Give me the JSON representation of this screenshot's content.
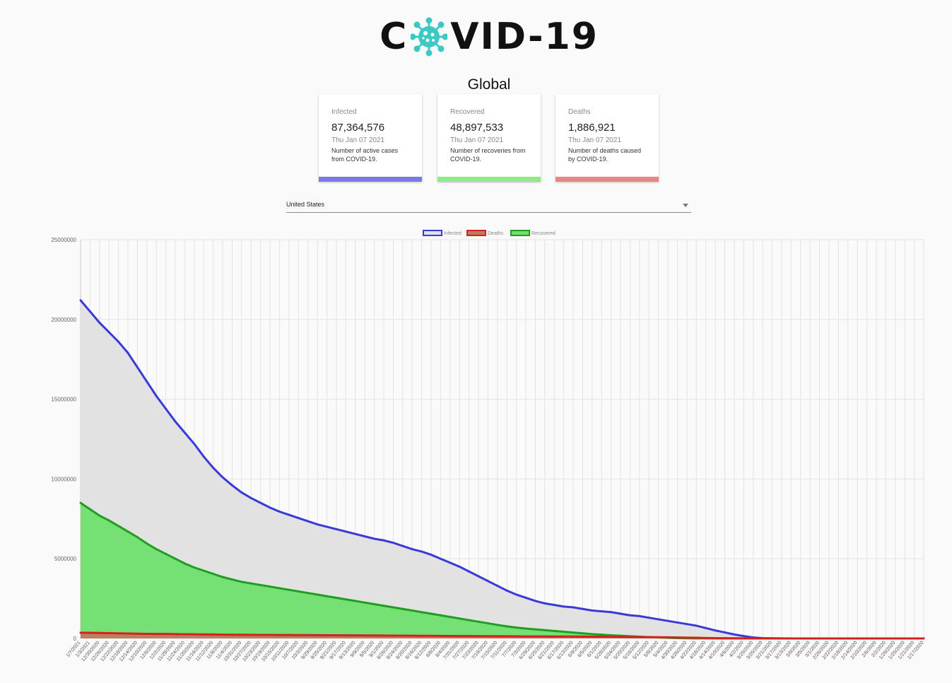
{
  "header": {
    "logo_prefix": "C",
    "logo_suffix": "VID-19",
    "region": "Global"
  },
  "cards": [
    {
      "label": "Infected",
      "value": "87,364,576",
      "date": "Thu Jan 07 2021",
      "description": "Number of active cases from COVID-19.",
      "color": "#7b79e6"
    },
    {
      "label": "Recovered",
      "value": "48,897,533",
      "date": "Thu Jan 07 2021",
      "description": "Number of recoveries from COVID-19.",
      "color": "#90ea8a"
    },
    {
      "label": "Deaths",
      "value": "1,886,921",
      "date": "Thu Jan 07 2021",
      "description": "Number of deaths caused by COVID-19.",
      "color": "#e98585"
    }
  ],
  "country_picker": {
    "selected": "United States"
  },
  "chart_data": {
    "type": "area",
    "xlabel": "",
    "ylabel": "",
    "ylim": [
      0,
      25000000
    ],
    "y_ticks": [
      "25000000",
      "20000000",
      "15000000",
      "10000000",
      "5000000",
      "0"
    ],
    "grid": true,
    "legend_position": "top",
    "x_order": "newest first",
    "categories": [
      "1/7/2021",
      "1/3/2021",
      "12/30/2020",
      "12/26/2020",
      "12/22/2020",
      "12/18/2020",
      "12/14/2020",
      "12/10/2020",
      "12/6/2020",
      "12/2/2020",
      "11/28/2020",
      "11/24/2020",
      "11/20/2020",
      "11/16/2020",
      "11/12/2020",
      "11/8/2020",
      "11/4/2020",
      "10/31/2020",
      "10/27/2020",
      "10/23/2020",
      "10/19/2020",
      "10/15/2020",
      "10/11/2020",
      "10/7/2020",
      "10/3/2020",
      "9/29/2020",
      "9/25/2020",
      "9/21/2020",
      "9/17/2020",
      "9/13/2020",
      "9/9/2020",
      "9/5/2020",
      "9/1/2020",
      "8/28/2020",
      "8/24/2020",
      "8/20/2020",
      "8/16/2020",
      "8/12/2020",
      "8/8/2020",
      "8/4/2020",
      "7/31/2020",
      "7/27/2020",
      "7/23/2020",
      "7/19/2020",
      "7/15/2020",
      "7/11/2020",
      "7/7/2020",
      "7/3/2020",
      "6/29/2020",
      "6/25/2020",
      "6/21/2020",
      "6/17/2020",
      "6/13/2020",
      "6/9/2020",
      "6/5/2020",
      "6/1/2020",
      "5/28/2020",
      "5/24/2020",
      "5/20/2020",
      "5/16/2020",
      "5/12/2020",
      "5/8/2020",
      "5/4/2020",
      "4/30/2020",
      "4/26/2020",
      "4/22/2020",
      "4/18/2020",
      "4/14/2020",
      "4/10/2020",
      "4/6/2020",
      "4/2/2020",
      "3/29/2020",
      "3/25/2020",
      "3/21/2020",
      "3/17/2020",
      "3/13/2020",
      "3/9/2020",
      "3/5/2020",
      "3/1/2020",
      "2/26/2020",
      "2/22/2020",
      "2/18/2020",
      "2/14/2020",
      "2/10/2020",
      "2/6/2020",
      "2/2/2020",
      "1/29/2020",
      "1/25/2020",
      "1/21/2020",
      "1/17/2020"
    ],
    "series": [
      {
        "name": "Infected",
        "color": "#3a3ad6",
        "fill": "#e0e0e0",
        "values": [
          21200000,
          20500000,
          19800000,
          19200000,
          18600000,
          17900000,
          17000000,
          16100000,
          15200000,
          14400000,
          13600000,
          12900000,
          12200000,
          11400000,
          10700000,
          10100000,
          9600000,
          9150000,
          8800000,
          8500000,
          8200000,
          7950000,
          7750000,
          7550000,
          7350000,
          7150000,
          7000000,
          6850000,
          6700000,
          6550000,
          6400000,
          6250000,
          6150000,
          6000000,
          5800000,
          5600000,
          5450000,
          5250000,
          5000000,
          4750000,
          4500000,
          4200000,
          3900000,
          3600000,
          3300000,
          3000000,
          2750000,
          2550000,
          2350000,
          2200000,
          2100000,
          2000000,
          1950000,
          1850000,
          1750000,
          1700000,
          1650000,
          1550000,
          1450000,
          1400000,
          1300000,
          1200000,
          1100000,
          1000000,
          900000,
          800000,
          650000,
          500000,
          380000,
          250000,
          150000,
          60000,
          20000,
          10000,
          5000,
          2000,
          500,
          200,
          100,
          60,
          40,
          30,
          20,
          15,
          12,
          11,
          5,
          3,
          1,
          1
        ]
      },
      {
        "name": "Deaths",
        "color": "#d22222",
        "fill": "#c07a60",
        "values": [
          360000,
          355000,
          345000,
          335000,
          320000,
          310000,
          300000,
          290000,
          285000,
          280000,
          270000,
          265000,
          260000,
          255000,
          248000,
          240000,
          235000,
          230000,
          227000,
          224000,
          220000,
          217000,
          214000,
          211000,
          208000,
          205000,
          202000,
          199000,
          196000,
          193000,
          190000,
          187000,
          183000,
          180000,
          176000,
          172000,
          168000,
          164000,
          160000,
          156000,
          152000,
          148000,
          145000,
          142000,
          139000,
          136000,
          133000,
          130000,
          128000,
          126000,
          124000,
          122000,
          120000,
          117000,
          113000,
          108000,
          103000,
          98000,
          93000,
          88000,
          83000,
          78000,
          70000,
          62000,
          52000,
          42000,
          30000,
          20000,
          14000,
          9000,
          5000,
          2500,
          900,
          300,
          100,
          40,
          20,
          10,
          3,
          0,
          0,
          0,
          0,
          0,
          0,
          0,
          0,
          0,
          0,
          0
        ]
      },
      {
        "name": "Recovered",
        "color": "#1f9e1f",
        "fill": "#6fe06f",
        "values": [
          8500000,
          8100000,
          7700000,
          7400000,
          7050000,
          6700000,
          6350000,
          5950000,
          5600000,
          5300000,
          5000000,
          4700000,
          4450000,
          4250000,
          4050000,
          3850000,
          3700000,
          3550000,
          3450000,
          3350000,
          3250000,
          3150000,
          3050000,
          2950000,
          2850000,
          2750000,
          2650000,
          2550000,
          2450000,
          2350000,
          2250000,
          2150000,
          2050000,
          1950000,
          1850000,
          1750000,
          1650000,
          1550000,
          1450000,
          1350000,
          1250000,
          1150000,
          1050000,
          950000,
          850000,
          760000,
          680000,
          620000,
          570000,
          520000,
          470000,
          420000,
          370000,
          320000,
          270000,
          240000,
          200000,
          170000,
          140000,
          110000,
          85000,
          60000,
          40000,
          25000,
          12000,
          6000,
          3000,
          1500,
          700,
          300,
          100,
          50,
          20,
          10,
          5,
          3,
          2,
          1,
          1,
          1,
          0,
          0,
          0,
          0,
          0,
          0,
          0,
          0,
          0,
          0
        ]
      }
    ]
  }
}
